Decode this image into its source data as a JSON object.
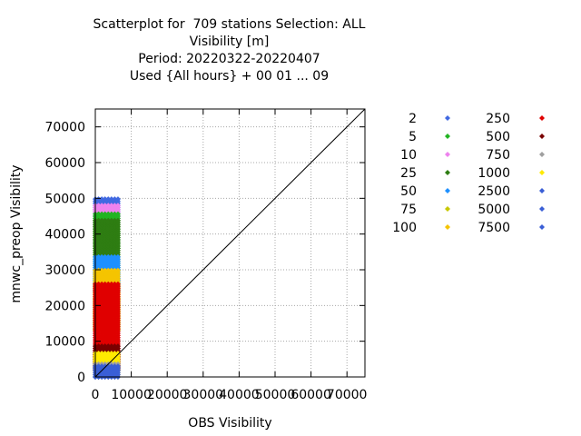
{
  "chart_data": {
    "type": "scatter",
    "title_lines": [
      "Scatterplot for  709 stations Selection: ALL",
      "Visibility [m]",
      "Period: 20220322-20220407",
      "Used {All hours} + 00 01 ... 09"
    ],
    "xlabel": "OBS Visibility",
    "ylabel": "mnwc_preop Visibility",
    "xlim": [
      0,
      75000
    ],
    "ylim": [
      0,
      75000
    ],
    "xticks": [
      0,
      10000,
      20000,
      30000,
      40000,
      50000,
      60000,
      70000
    ],
    "yticks": [
      0,
      10000,
      20000,
      30000,
      40000,
      50000,
      60000,
      70000
    ],
    "grid": true,
    "diagonal_reference_line": true,
    "legend_position": "right",
    "legend": [
      {
        "count": "2",
        "color": "#4169e1"
      },
      {
        "count": "5",
        "color": "#22b422"
      },
      {
        "count": "10",
        "color": "#ee82ee"
      },
      {
        "count": "25",
        "color": "#2e7d12"
      },
      {
        "count": "50",
        "color": "#1e90ff"
      },
      {
        "count": "75",
        "color": "#c8c800"
      },
      {
        "count": "100",
        "color": "#f5c400"
      },
      {
        "count": "250",
        "color": "#e00000"
      },
      {
        "count": "500",
        "color": "#7a0000"
      },
      {
        "count": "750",
        "color": "#a0a0a0"
      },
      {
        "count": "1000",
        "color": "#ffea00"
      },
      {
        "count": "2500",
        "color": "#3a5fd6"
      },
      {
        "count": "5000",
        "color": "#3a5fd6"
      },
      {
        "count": "7500",
        "color": "#3a5fd6"
      }
    ],
    "density_bands": [
      {
        "x_range": [
          0,
          6500
        ],
        "y_range": [
          45000,
          50000
        ],
        "color": "#4169e1"
      },
      {
        "x_range": [
          0,
          6500
        ],
        "y_range": [
          42000,
          48000
        ],
        "color": "#ee82ee"
      },
      {
        "x_range": [
          0,
          6500
        ],
        "y_range": [
          36000,
          46000
        ],
        "color": "#22b422"
      },
      {
        "x_range": [
          0,
          6500
        ],
        "y_range": [
          30000,
          44000
        ],
        "color": "#2e7d12"
      },
      {
        "x_range": [
          0,
          6500
        ],
        "y_range": [
          24000,
          34000
        ],
        "color": "#1e90ff"
      },
      {
        "x_range": [
          0,
          6500
        ],
        "y_range": [
          16000,
          30000
        ],
        "color": "#f5c400"
      },
      {
        "x_range": [
          0,
          6500
        ],
        "y_range": [
          13000,
          22000
        ],
        "color": "#c8c800"
      },
      {
        "x_range": [
          0,
          6500
        ],
        "y_range": [
          5000,
          26000
        ],
        "color": "#e00000"
      },
      {
        "x_range": [
          0,
          6500
        ],
        "y_range": [
          2000,
          9000
        ],
        "color": "#7a0000"
      },
      {
        "x_range": [
          0,
          6500
        ],
        "y_range": [
          0,
          7000
        ],
        "color": "#ffea00"
      },
      {
        "x_range": [
          0,
          6500
        ],
        "y_range": [
          0,
          4000
        ],
        "color": "#a0a0a0"
      },
      {
        "x_range": [
          0,
          6500
        ],
        "y_range": [
          0,
          3000
        ],
        "color": "#3a5fd6"
      }
    ]
  }
}
